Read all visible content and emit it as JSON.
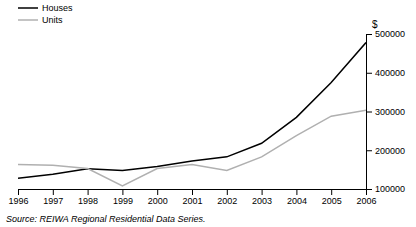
{
  "chart_data": {
    "type": "line",
    "y_label": "$",
    "annotations": [
      "Source: REIWA Regional Residential Data Series."
    ],
    "x": [
      1996,
      1997,
      1998,
      1999,
      2000,
      2001,
      2002,
      2003,
      2004,
      2005,
      2006
    ],
    "series": [
      {
        "name": "Houses",
        "color": "#000000",
        "values": [
          128000,
          138000,
          152000,
          148000,
          158000,
          172000,
          183000,
          218000,
          285000,
          375000,
          478000
        ]
      },
      {
        "name": "Units",
        "color": "#b0b0b0",
        "values": [
          163000,
          161000,
          153000,
          108000,
          153000,
          163000,
          148000,
          183000,
          238000,
          288000,
          303000
        ]
      }
    ],
    "xlim": [
      1996,
      2006
    ],
    "xticks": [
      1996,
      1997,
      1998,
      1999,
      2000,
      2001,
      2002,
      2003,
      2004,
      2005,
      2006
    ],
    "ylim": [
      100000,
      500000
    ],
    "yticks": [
      100000,
      200000,
      300000,
      400000,
      500000
    ],
    "grid": false,
    "legend": "top-left"
  }
}
